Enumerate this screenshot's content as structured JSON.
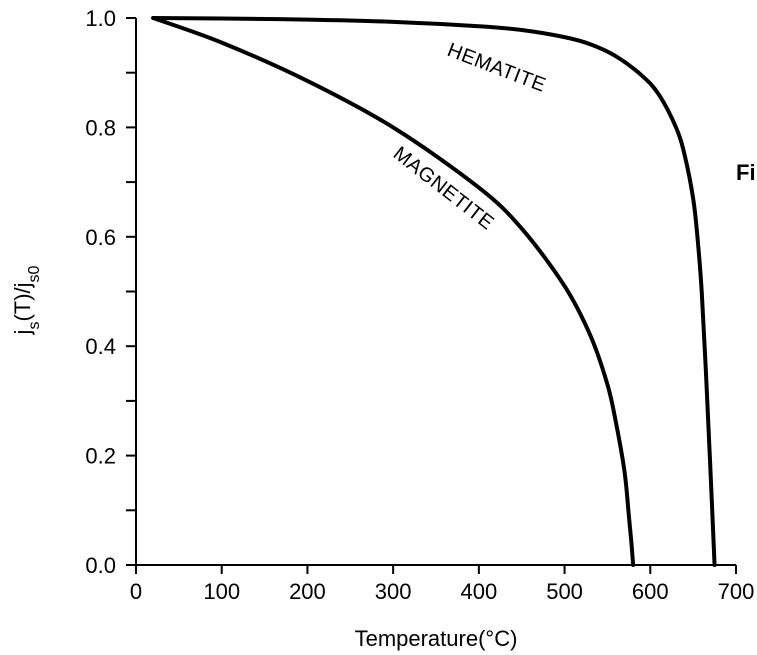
{
  "chart_data": {
    "type": "line",
    "title": "",
    "xlabel": "Temperature(°C)",
    "ylabel": {
      "base1": "j",
      "sub1": "s",
      "middle": "(T)/j",
      "sub2": "s0"
    },
    "xlim": [
      0,
      700
    ],
    "ylim": [
      0.0,
      1.0
    ],
    "x_ticks": [
      0,
      100,
      200,
      300,
      400,
      500,
      600,
      700
    ],
    "x_tick_labels": [
      "0",
      "100",
      "200",
      "300",
      "400",
      "500",
      "600",
      "700"
    ],
    "y_ticks": [
      0.0,
      0.2,
      0.4,
      0.6,
      0.8,
      1.0
    ],
    "y_tick_labels": [
      "0.0",
      "0.2",
      "0.4",
      "0.6",
      "0.8",
      "1.0"
    ],
    "y_minor_step": 0.1,
    "grid": false,
    "legend": "none",
    "series": [
      {
        "name": "HEMATITE",
        "x": [
          20,
          100,
          200,
          300,
          400,
          450,
          500,
          530,
          560,
          590,
          610,
          630,
          640,
          650,
          655,
          660,
          665,
          670,
          675
        ],
        "y": [
          1.0,
          0.999,
          0.997,
          0.993,
          0.985,
          0.978,
          0.965,
          0.952,
          0.93,
          0.895,
          0.86,
          0.8,
          0.75,
          0.67,
          0.6,
          0.5,
          0.35,
          0.18,
          0.0
        ]
      },
      {
        "name": "MAGNETITE",
        "x": [
          20,
          100,
          200,
          300,
          400,
          450,
          500,
          530,
          550,
          560,
          570,
          575,
          578,
          580
        ],
        "y": [
          1.0,
          0.955,
          0.885,
          0.8,
          0.69,
          0.615,
          0.51,
          0.42,
          0.33,
          0.26,
          0.17,
          0.09,
          0.04,
          0.0
        ]
      }
    ],
    "annotations": [
      "HEMATITE",
      "MAGNETITE"
    ],
    "figure_label": "Fi"
  }
}
